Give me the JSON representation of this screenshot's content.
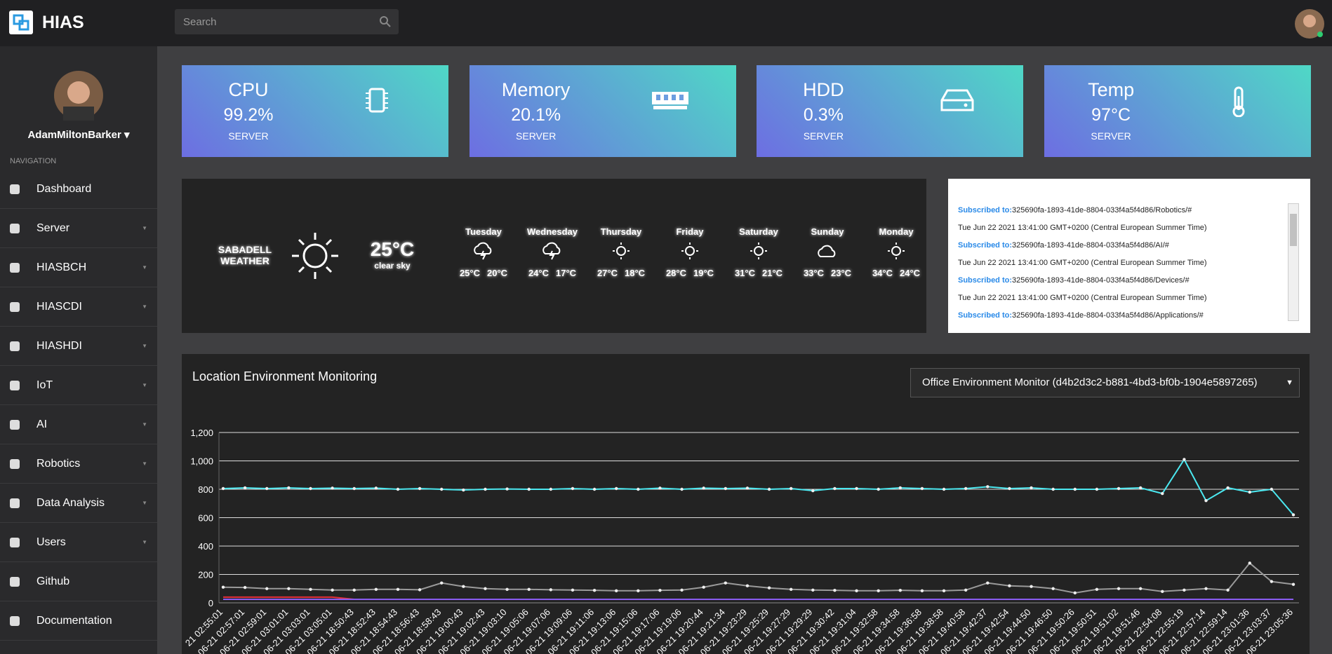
{
  "header": {
    "brand": "HIAS",
    "search_placeholder": "Search"
  },
  "sidebar": {
    "user": "AdamMiltonBarker",
    "section": "NAVIGATION",
    "items": [
      "Dashboard",
      "Server",
      "HIASBCH",
      "HIASCDI",
      "HIASHDI",
      "IoT",
      "AI",
      "Robotics",
      "Data Analysis",
      "Users",
      "Github",
      "Documentation"
    ]
  },
  "cards": [
    {
      "title": "CPU",
      "value": "99.2%",
      "label": "SERVER"
    },
    {
      "title": "Memory",
      "value": "20.1%",
      "label": "SERVER"
    },
    {
      "title": "HDD",
      "value": "0.3%",
      "label": "SERVER"
    },
    {
      "title": "Temp",
      "value": "97°C",
      "label": "SERVER"
    }
  ],
  "weather": {
    "city": "SABADELL",
    "subtitle": "WEATHER",
    "temp": "25°C",
    "desc": "clear sky",
    "days": [
      {
        "day": "Tuesday",
        "high": "25°C",
        "low": "20°C"
      },
      {
        "day": "Wednesday",
        "high": "24°C",
        "low": "17°C"
      },
      {
        "day": "Thursday",
        "high": "27°C",
        "low": "18°C"
      },
      {
        "day": "Friday",
        "high": "28°C",
        "low": "19°C"
      },
      {
        "day": "Saturday",
        "high": "31°C",
        "low": "21°C"
      },
      {
        "day": "Sunday",
        "high": "33°C",
        "low": "23°C"
      },
      {
        "day": "Monday",
        "high": "34°C",
        "low": "24°C"
      }
    ]
  },
  "log": [
    {
      "prefix": "Subscribed to:",
      "text": "325690fa-1893-41de-8804-033f4a5f4d86/Robotics/#"
    },
    {
      "text": "Tue Jun 22 2021 13:41:00 GMT+0200 (Central European Summer Time)"
    },
    {
      "prefix": "Subscribed to:",
      "text": "325690fa-1893-41de-8804-033f4a5f4d86/AI/#"
    },
    {
      "text": "Tue Jun 22 2021 13:41:00 GMT+0200 (Central European Summer Time)"
    },
    {
      "prefix": "Subscribed to:",
      "text": "325690fa-1893-41de-8804-033f4a5f4d86/Devices/#"
    },
    {
      "text": "Tue Jun 22 2021 13:41:00 GMT+0200 (Central European Summer Time)"
    },
    {
      "prefix": "Subscribed to:",
      "text": "325690fa-1893-41de-8804-033f4a5f4d86/Applications/#"
    }
  ],
  "monitor_select": "Office Environment Monitor (d4b2d3c2-b881-4bd3-bf0b-1904e5897265)",
  "chart_data": {
    "type": "line",
    "title": "Location Environment Monitoring",
    "grid": true,
    "categories": [
      "21 02:55:01",
      "-06-21 02:57:01",
      "-06-21 02:59:01",
      "-06-21 03:01:01",
      "-06-21 03:03:01",
      "-06-21 03:05:01",
      "-06-21 18:50:43",
      "-06-21 18:52:43",
      "-06-21 18:54:43",
      "-06-21 18:56:43",
      "-06-21 18:58:43",
      "-06-21 19:00:43",
      "-06-21 19:02:43",
      "-06-21 19:03:10",
      "-06-21 19:05:06",
      "-06-21 19:07:06",
      "-06-21 19:09:06",
      "-06-21 19:11:06",
      "-06-21 19:13:06",
      "-06-21 19:15:06",
      "-06-21 19:17:06",
      "-06-21 19:19:06",
      "-06-21 19:20:44",
      "-06-21 19:21:34",
      "-06-21 19:23:29",
      "-06-21 19:25:29",
      "-06-21 19:27:29",
      "-06-21 19:29:29",
      "-06-21 19:30:42",
      "-06-21 19:31:04",
      "-06-21 19:32:58",
      "-06-21 19:34:58",
      "-06-21 19:36:58",
      "-06-21 19:38:58",
      "-06-21 19:40:58",
      "-06-21 19:42:37",
      "-06-21 19:42:54",
      "-06-21 19:44:50",
      "-06-21 19:46:50",
      "-06-21 19:50:26",
      "-06-21 19:50:51",
      "-06-21 19:51:02",
      "-06-21 19:51:46",
      "-06-21 22:54:08",
      "-06-21 22:55:19",
      "-06-21 22:57:14",
      "-06-21 22:59:14",
      "-06-21 23:01:36",
      "-06-21 23:03:37",
      "-06-21 23:05:36"
    ],
    "series": [
      {
        "color": "#4be8f0",
        "values": [
          805,
          810,
          805,
          810,
          805,
          808,
          805,
          808,
          800,
          805,
          800,
          795,
          800,
          802,
          800,
          800,
          805,
          800,
          805,
          800,
          808,
          800,
          808,
          805,
          808,
          800,
          805,
          790,
          805,
          805,
          800,
          810,
          805,
          800,
          805,
          818,
          805,
          810,
          800,
          800,
          800,
          805,
          810,
          770,
          1010,
          720,
          810,
          780,
          800,
          620
        ]
      },
      {
        "color": "#9a9a9a",
        "values": [
          110,
          108,
          100,
          100,
          95,
          90,
          90,
          95,
          95,
          92,
          140,
          115,
          100,
          95,
          95,
          92,
          90,
          88,
          85,
          85,
          88,
          90,
          110,
          140,
          120,
          105,
          95,
          90,
          88,
          85,
          85,
          88,
          85,
          85,
          90,
          140,
          120,
          115,
          100,
          70,
          95,
          100,
          100,
          80,
          90,
          100,
          90,
          280,
          150,
          130
        ]
      },
      {
        "color": "#e8303a",
        "values": [
          40,
          40,
          40,
          40,
          40,
          40,
          25,
          25,
          25,
          25,
          25,
          25,
          25,
          25,
          25,
          25,
          25,
          25,
          25,
          25,
          25,
          25,
          25,
          25,
          25,
          25,
          25,
          25,
          25,
          25,
          25,
          25,
          25,
          25,
          25,
          25,
          25,
          25,
          25,
          25,
          25,
          25,
          25,
          25,
          25,
          25,
          25,
          25,
          25,
          25
        ]
      },
      {
        "color": "#8a5cf0",
        "values": [
          25,
          25,
          25,
          25,
          25,
          25,
          25,
          25,
          25,
          25,
          25,
          25,
          25,
          25,
          25,
          25,
          25,
          25,
          25,
          25,
          25,
          25,
          25,
          25,
          25,
          25,
          25,
          25,
          25,
          25,
          25,
          25,
          25,
          25,
          25,
          25,
          25,
          25,
          25,
          25,
          25,
          25,
          25,
          25,
          25,
          25,
          25,
          25,
          25,
          25
        ]
      }
    ],
    "ylim": [
      0,
      1200
    ],
    "yticks": [
      0,
      200,
      400,
      600,
      800,
      {
        "value": 1000,
        "label": "1,000"
      },
      {
        "value": 1200,
        "label": "1,200"
      }
    ]
  }
}
